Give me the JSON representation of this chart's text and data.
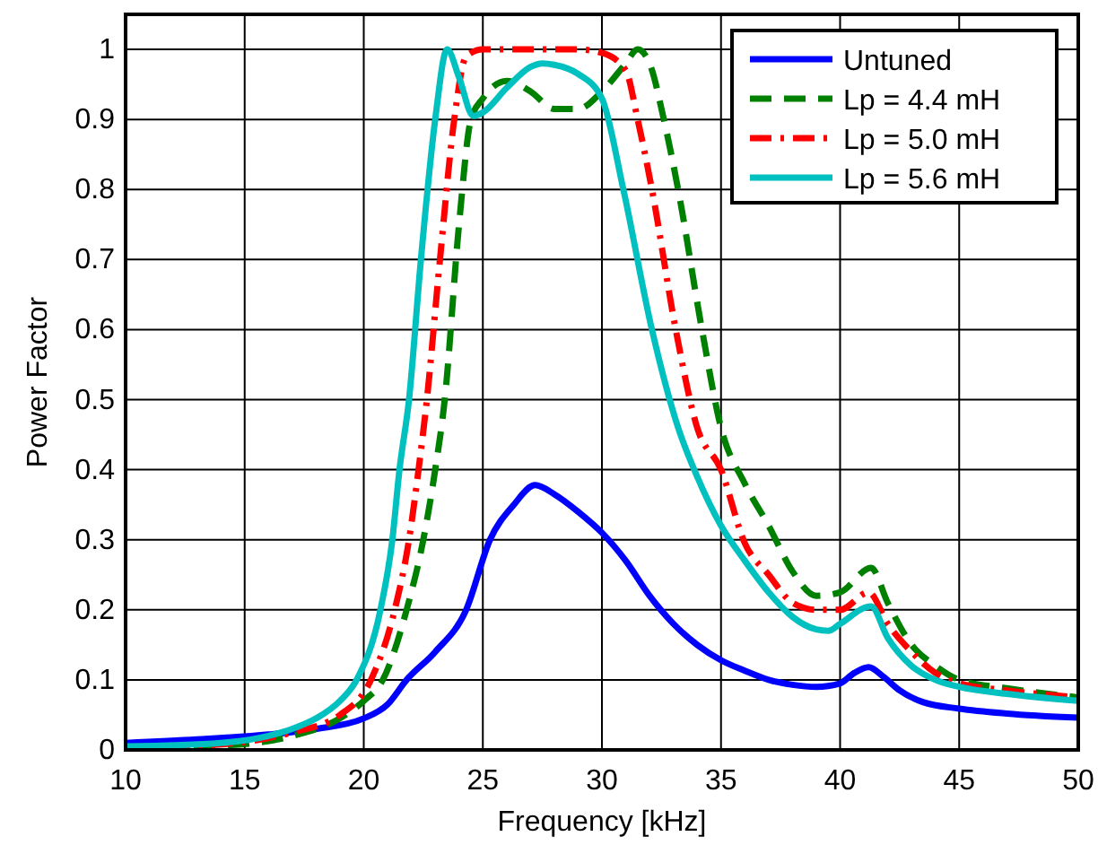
{
  "chart_data": {
    "type": "line",
    "xlabel": "Frequency [kHz]",
    "ylabel": "Power Factor",
    "xlim": [
      10,
      50
    ],
    "ylim": [
      0,
      1.05
    ],
    "xticks": [
      10,
      15,
      20,
      25,
      30,
      35,
      40,
      45,
      50
    ],
    "yticks": [
      0,
      0.1,
      0.2,
      0.3,
      0.4,
      0.5,
      0.6,
      0.7,
      0.8,
      0.9,
      1
    ],
    "grid": true,
    "legend": "top right",
    "series": [
      {
        "name": "Untuned",
        "color": "#0000ff",
        "line_style": "solid",
        "x": [
          10,
          13,
          16,
          18,
          20,
          21,
          21.8,
          23,
          24.3,
          25.3,
          26.3,
          27.2,
          28,
          29,
          30,
          31,
          32,
          33,
          34,
          35,
          36,
          37,
          38,
          39,
          40,
          40.6,
          41.2,
          41.8,
          42.5,
          43.5,
          45,
          47,
          50
        ],
        "values": [
          0.01,
          0.015,
          0.022,
          0.03,
          0.045,
          0.065,
          0.1,
          0.14,
          0.2,
          0.3,
          0.35,
          0.378,
          0.365,
          0.34,
          0.31,
          0.27,
          0.22,
          0.18,
          0.15,
          0.128,
          0.113,
          0.1,
          0.093,
          0.09,
          0.095,
          0.11,
          0.118,
          0.105,
          0.085,
          0.068,
          0.059,
          0.052,
          0.046
        ]
      },
      {
        "name": "Lp = 4.4 mH",
        "color": "#008000",
        "line_style": "dashed",
        "x": [
          10,
          14,
          17,
          19,
          20,
          20.8,
          21.8,
          22.5,
          23,
          23.4,
          24,
          24.5,
          25,
          26,
          27,
          28,
          29,
          30,
          31,
          31.5,
          32,
          32.6,
          33.2,
          34.2,
          35,
          36,
          37,
          38,
          39,
          40,
          41.3,
          42,
          43,
          44,
          45,
          47,
          50
        ],
        "values": [
          0.002,
          0.006,
          0.02,
          0.045,
          0.07,
          0.1,
          0.2,
          0.3,
          0.4,
          0.5,
          0.75,
          0.9,
          0.93,
          0.955,
          0.94,
          0.915,
          0.915,
          0.94,
          0.98,
          1.0,
          0.98,
          0.9,
          0.8,
          0.6,
          0.46,
          0.38,
          0.32,
          0.255,
          0.22,
          0.225,
          0.26,
          0.21,
          0.15,
          0.12,
          0.1,
          0.088,
          0.075
        ]
      },
      {
        "name": "Lp = 5.0 mH",
        "color": "#ff0000",
        "line_style": "dashdot",
        "x": [
          10,
          14,
          17,
          19,
          20.3,
          21.3,
          21.9,
          22.3,
          22.65,
          23.2,
          23.8,
          24.3,
          25,
          27,
          29,
          30,
          31,
          31.5,
          32.1,
          33.1,
          34,
          35,
          36,
          37,
          38,
          39,
          40,
          41.2,
          42,
          43,
          44,
          45,
          47,
          50
        ],
        "values": [
          0.003,
          0.008,
          0.025,
          0.05,
          0.1,
          0.2,
          0.3,
          0.4,
          0.5,
          0.7,
          0.9,
          0.99,
          1.0,
          1.0,
          1.0,
          0.995,
          0.97,
          0.9,
          0.8,
          0.6,
          0.46,
          0.4,
          0.295,
          0.25,
          0.21,
          0.2,
          0.2,
          0.225,
          0.18,
          0.14,
          0.11,
          0.095,
          0.085,
          0.075
        ]
      },
      {
        "name": "Lp = 5.6 mH",
        "color": "#00c0c0",
        "line_style": "solid",
        "x": [
          10,
          14,
          16,
          17,
          18,
          19,
          19.7,
          20.7,
          21.2,
          21.5,
          21.9,
          22.4,
          23,
          23.5,
          24,
          24.6,
          25,
          26,
          27,
          27.5,
          28,
          29,
          30,
          30.9,
          32.1,
          33.2,
          34,
          35,
          36,
          37,
          38,
          39,
          39.5,
          40,
          41.3,
          42,
          43,
          44,
          45,
          47,
          50
        ],
        "values": [
          0.005,
          0.01,
          0.02,
          0.03,
          0.045,
          0.07,
          0.1,
          0.2,
          0.3,
          0.4,
          0.5,
          0.7,
          0.9,
          1.0,
          0.96,
          0.905,
          0.91,
          0.945,
          0.975,
          0.98,
          0.978,
          0.965,
          0.93,
          0.8,
          0.6,
          0.46,
          0.39,
          0.32,
          0.27,
          0.225,
          0.19,
          0.172,
          0.17,
          0.18,
          0.205,
          0.16,
          0.12,
          0.1,
          0.09,
          0.08,
          0.07
        ]
      }
    ]
  }
}
